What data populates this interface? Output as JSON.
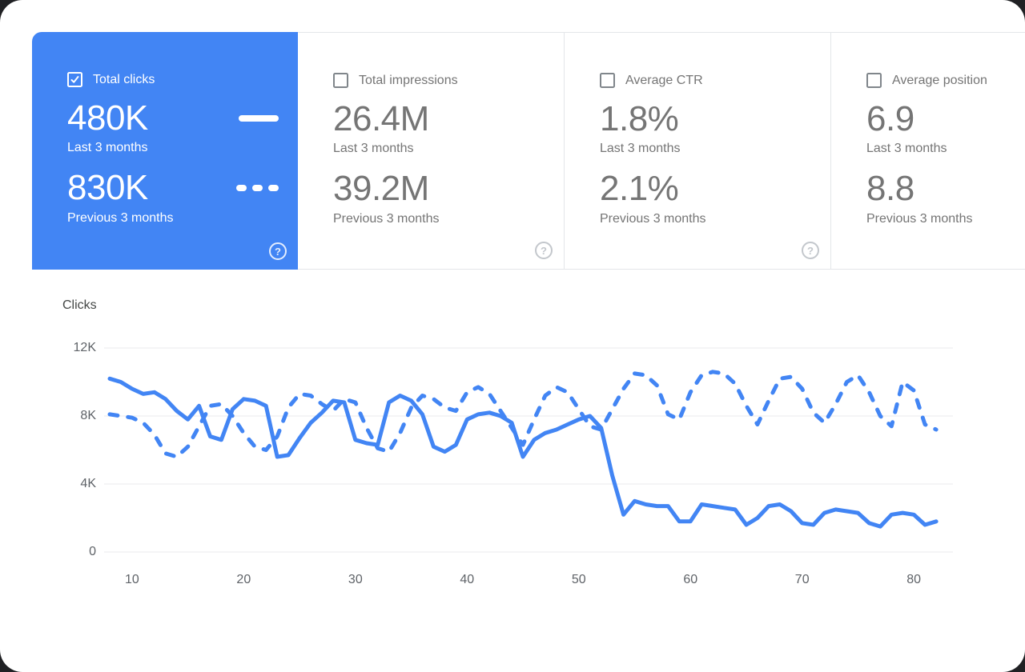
{
  "colors": {
    "accent": "#4285f4",
    "selected_card_bg": "#4285f4",
    "text_gray": "#757575",
    "grid": "#e8eaed"
  },
  "cards": [
    {
      "label": "Total clicks",
      "value_current": "480K",
      "caption_current": "Last 3 months",
      "value_previous": "830K",
      "caption_previous": "Previous 3 months",
      "selected": true,
      "checked": true,
      "help": "?"
    },
    {
      "label": "Total impressions",
      "value_current": "26.4M",
      "caption_current": "Last 3 months",
      "value_previous": "39.2M",
      "caption_previous": "Previous 3 months",
      "selected": false,
      "checked": false,
      "help": "?"
    },
    {
      "label": "Average CTR",
      "value_current": "1.8%",
      "caption_current": "Last 3 months",
      "value_previous": "2.1%",
      "caption_previous": "Previous 3 months",
      "selected": false,
      "checked": false,
      "help": "?"
    },
    {
      "label": "Average position",
      "value_current": "6.9",
      "caption_current": "Last 3 months",
      "value_previous": "8.8",
      "caption_previous": "Previous 3 months",
      "selected": false,
      "checked": false,
      "help": "?"
    }
  ],
  "chart_data": {
    "type": "line",
    "title": "Clicks",
    "ylabel": "Clicks",
    "grid": true,
    "line_color": "#4285f4",
    "xlim": [
      7.5,
      83.5
    ],
    "ylim": [
      0,
      12000
    ],
    "xticks": [
      10,
      20,
      30,
      40,
      50,
      60,
      70,
      80
    ],
    "yticks": [
      {
        "value": 0,
        "label": "0"
      },
      {
        "value": 4000,
        "label": "4K"
      },
      {
        "value": 8000,
        "label": "8K"
      },
      {
        "value": 12000,
        "label": "12K"
      }
    ],
    "x": [
      8,
      9,
      10,
      11,
      12,
      13,
      14,
      15,
      16,
      17,
      18,
      19,
      20,
      21,
      22,
      23,
      24,
      25,
      26,
      27,
      28,
      29,
      30,
      31,
      32,
      33,
      34,
      35,
      36,
      37,
      38,
      39,
      40,
      41,
      42,
      43,
      44,
      45,
      46,
      47,
      48,
      49,
      50,
      51,
      52,
      53,
      54,
      55,
      56,
      57,
      58,
      59,
      60,
      61,
      62,
      63,
      64,
      65,
      66,
      67,
      68,
      69,
      70,
      71,
      72,
      73,
      74,
      75,
      76,
      77,
      78,
      79,
      80,
      81,
      82
    ],
    "series": [
      {
        "name": "Last 3 months",
        "style": "solid",
        "values": [
          10200,
          10000,
          9600,
          9300,
          9400,
          9000,
          8300,
          7800,
          8600,
          6800,
          6600,
          8400,
          9000,
          8900,
          8600,
          5600,
          5700,
          6700,
          7600,
          8200,
          8900,
          8800,
          6600,
          6400,
          6300,
          8800,
          9200,
          8900,
          8100,
          6200,
          5900,
          6300,
          7800,
          8100,
          8200,
          8000,
          7600,
          5600,
          6600,
          7000,
          7200,
          7500,
          7800,
          8000,
          7300,
          4500,
          2200,
          3000,
          2800,
          2700,
          2700,
          1800,
          1800,
          2800,
          2700,
          2600,
          2500,
          1600,
          2000,
          2700,
          2800,
          2400,
          1700,
          1600,
          2300,
          2500,
          2400,
          2300,
          1700,
          1500,
          2200,
          2300,
          2200,
          1600,
          1800
        ]
      },
      {
        "name": "Previous 3 months",
        "style": "dashed",
        "values": [
          8100,
          8000,
          7900,
          7600,
          6900,
          5800,
          5600,
          6200,
          7400,
          8600,
          8700,
          8000,
          7000,
          6200,
          6000,
          6800,
          8500,
          9300,
          9200,
          8700,
          8300,
          9000,
          8800,
          7300,
          6100,
          5900,
          7000,
          8500,
          9200,
          9000,
          8500,
          8300,
          9400,
          9700,
          9300,
          8300,
          7300,
          6300,
          7800,
          9200,
          9700,
          9400,
          8400,
          7400,
          7200,
          8400,
          9600,
          10500,
          10400,
          9800,
          8100,
          7800,
          9400,
          10400,
          10600,
          10500,
          9900,
          8600,
          7500,
          8900,
          10200,
          10300,
          9600,
          8200,
          7600,
          8700,
          10000,
          10400,
          9400,
          8000,
          7400,
          10000,
          9500,
          7500,
          7200
        ]
      }
    ]
  }
}
